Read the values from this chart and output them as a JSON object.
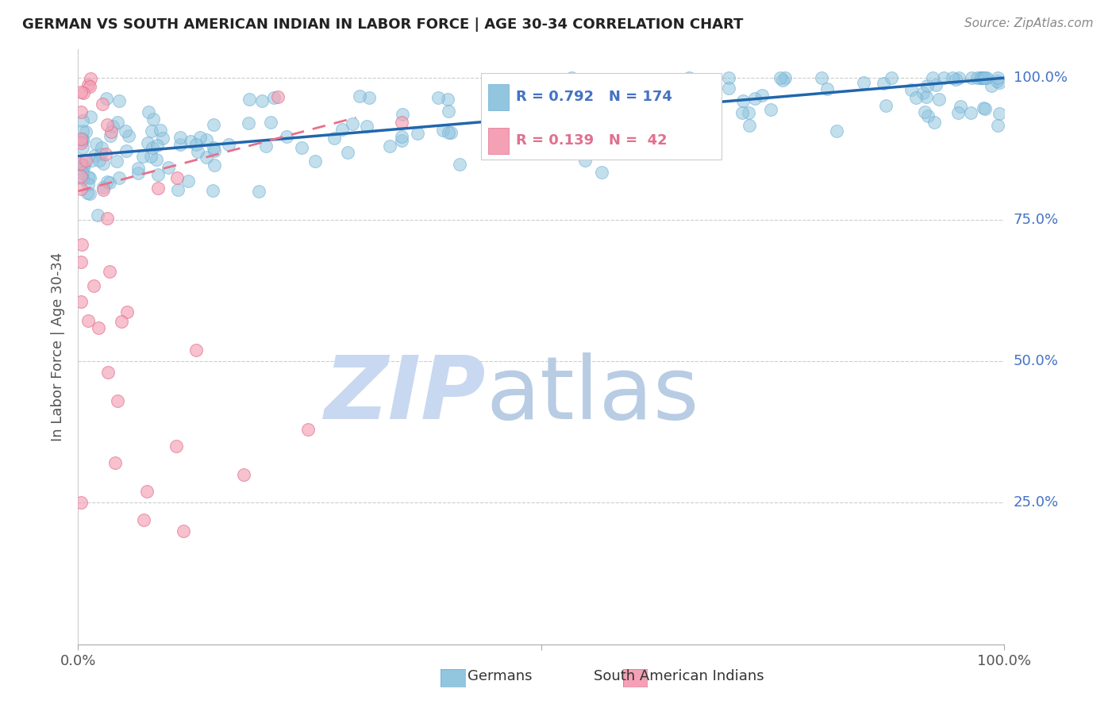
{
  "title": "GERMAN VS SOUTH AMERICAN INDIAN IN LABOR FORCE | AGE 30-34 CORRELATION CHART",
  "source": "Source: ZipAtlas.com",
  "ylabel": "In Labor Force | Age 30-34",
  "legend_blue_R": "R = 0.792",
  "legend_blue_N": "N = 174",
  "legend_pink_R": "R = 0.139",
  "legend_pink_N": "N =  42",
  "blue_color": "#92c5de",
  "blue_edge_color": "#6aaed6",
  "pink_color": "#f4a0b5",
  "pink_edge_color": "#e07090",
  "blue_line_color": "#2166ac",
  "pink_line_color": "#e8708a",
  "watermark_zip_color": "#c8d8f0",
  "watermark_atlas_color": "#b8cce4",
  "background_color": "#ffffff",
  "grid_color": "#cccccc",
  "title_color": "#222222",
  "source_color": "#888888",
  "axis_label_color": "#555555",
  "right_label_color": "#4472c4",
  "legend_blue_color": "#4472c4",
  "legend_pink_color": "#e07090",
  "blue_label": "Germans",
  "pink_label": "South American Indians",
  "xlim": [
    0,
    1.0
  ],
  "ylim": [
    0,
    1.05
  ],
  "xticks": [
    0.0,
    0.5,
    1.0
  ],
  "xticklabels": [
    "0.0%",
    "",
    "100.0%"
  ],
  "ytick_values": [
    0.25,
    0.5,
    0.75,
    1.0
  ],
  "right_tick_labels": [
    "25.0%",
    "50.0%",
    "75.0%",
    "100.0%"
  ],
  "blue_trend_x": [
    0.0,
    1.0
  ],
  "blue_trend_y": [
    0.862,
    1.0
  ],
  "pink_trend_x": [
    0.0,
    0.3
  ],
  "pink_trend_y": [
    0.8,
    0.93
  ]
}
